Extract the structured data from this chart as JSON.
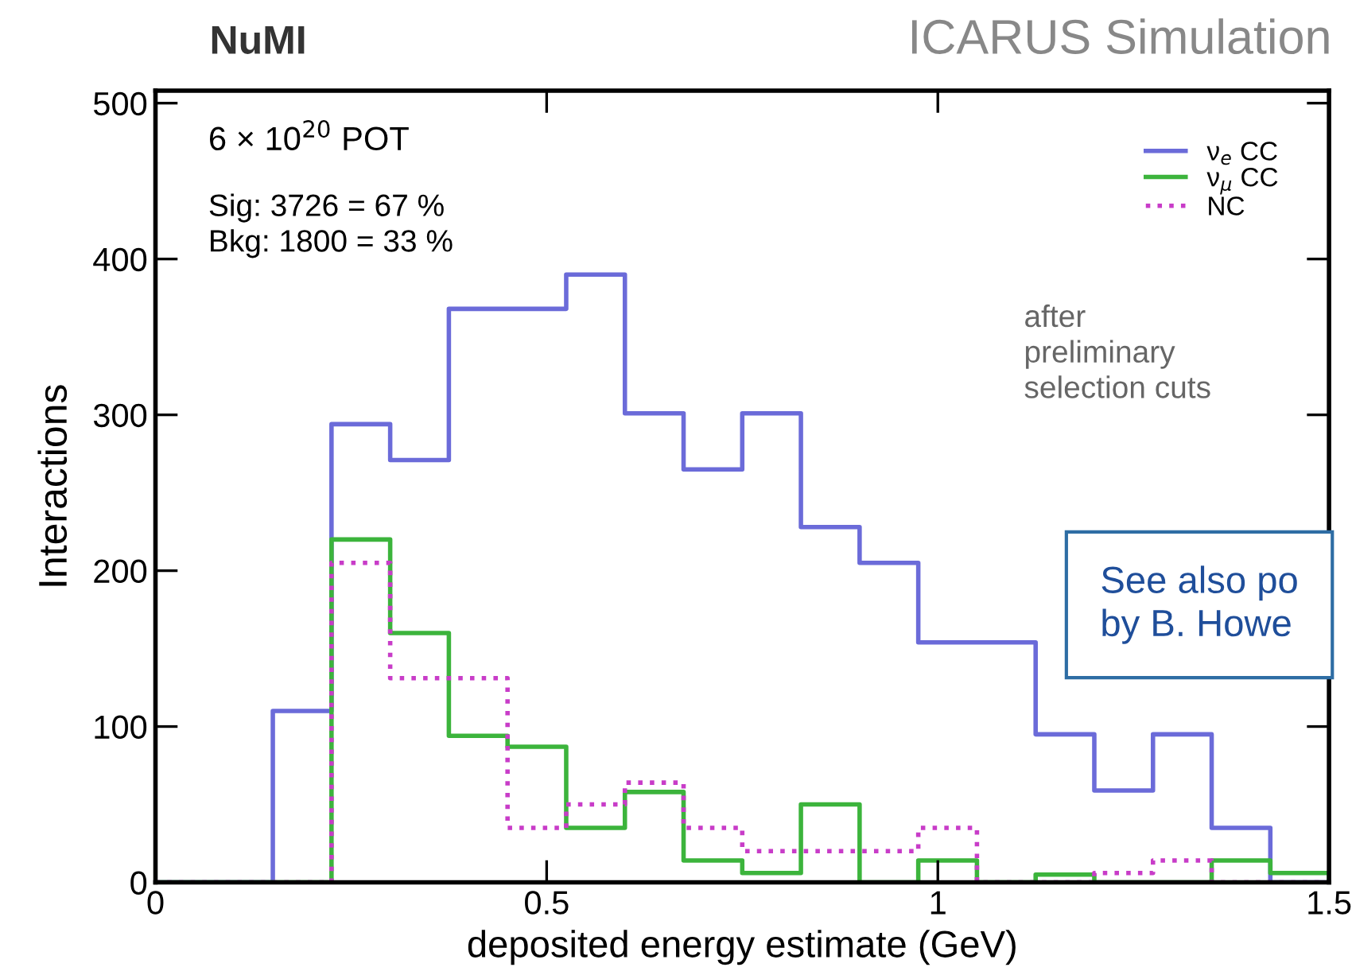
{
  "chart_data": {
    "type": "histogram",
    "title": "NuMI",
    "subtitle": "ICARUS Simulation",
    "xlabel": "deposited energy estimate (GeV)",
    "ylabel": "Interactions",
    "bins": [
      0,
      0.075,
      0.15,
      0.225,
      0.3,
      0.375,
      0.45,
      0.525,
      0.6,
      0.675,
      0.75,
      0.825,
      0.9,
      0.975,
      1.05,
      1.125,
      1.2,
      1.275,
      1.35,
      1.425,
      1.5
    ],
    "series": [
      {
        "name": "ν$_{e}$ CC",
        "color": "#6b6bd9",
        "line_style": "solid",
        "values": [
          0,
          0,
          110,
          294,
          271,
          368,
          368,
          390,
          301,
          265,
          301,
          228,
          205,
          154,
          154,
          95,
          59,
          95,
          35,
          0
        ]
      },
      {
        "name": "ν$_{μ}$ CC",
        "color": "#3cb43c",
        "line_style": "solid",
        "values": [
          0,
          0,
          0,
          220,
          160,
          94,
          87,
          35,
          58,
          14,
          6,
          50,
          0,
          14,
          0,
          5,
          0,
          0,
          14,
          6
        ]
      },
      {
        "name": "NC",
        "color": "#c83cc8",
        "line_style": "dotted",
        "values": [
          0,
          0,
          0,
          205,
          131,
          131,
          35,
          50,
          64,
          35,
          20,
          20,
          20,
          35,
          0,
          0,
          6,
          14,
          0,
          0
        ]
      }
    ],
    "xlim": [
      0,
      1.5
    ],
    "ylim": [
      0,
      508
    ],
    "xticks": [
      0,
      0.5,
      1,
      1.5
    ],
    "yticks": [
      0,
      100,
      200,
      300,
      400,
      500
    ],
    "grid": false,
    "legend": "top right",
    "annotations": [
      "6 × 10$^{20}$ POT",
      "Sig: 3726 = 67 %\nBkg: 1800 = 33 %",
      "after\npreliminary\nselection cuts",
      "See also po\nby B. Howe"
    ]
  }
}
